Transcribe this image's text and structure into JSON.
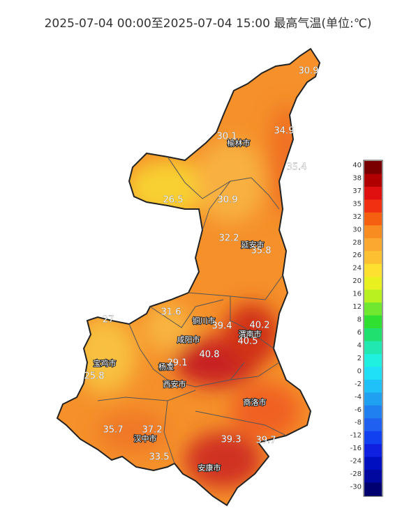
{
  "title": "2025-07-04 00:00至2025-07-04 15:00 最高气温(单位:℃)",
  "cities": [
    "榆林市",
    "延安市",
    "铜川市",
    "渭南市",
    "咸阳市",
    "宝鸡市",
    "杨凌",
    "西安市",
    "商洛市",
    "汉中市",
    "安康市"
  ],
  "readings": [
    30.9,
    30.1,
    34.9,
    35.4,
    26.5,
    30.9,
    32.2,
    35.8,
    31.6,
    27,
    39.4,
    40.2,
    40.5,
    29.1,
    40.8,
    25.8,
    35.7,
    37.2,
    33.5,
    39.3,
    39.7
  ],
  "legend": {
    "levels": [
      {
        "value": 40,
        "color": "#7a0000"
      },
      {
        "value": 38,
        "color": "#b00000"
      },
      {
        "value": 37,
        "color": "#e01010"
      },
      {
        "value": 35,
        "color": "#f03010"
      },
      {
        "value": 32,
        "color": "#f56010"
      },
      {
        "value": 30,
        "color": "#f88c20"
      },
      {
        "value": 28,
        "color": "#faa830"
      },
      {
        "value": 26,
        "color": "#fcc030"
      },
      {
        "value": 24,
        "color": "#fde030"
      },
      {
        "value": 20,
        "color": "#e8f020"
      },
      {
        "value": 16,
        "color": "#b8f020"
      },
      {
        "value": 12,
        "color": "#70e830"
      },
      {
        "value": 8,
        "color": "#30e030"
      },
      {
        "value": 6,
        "color": "#20e070"
      },
      {
        "value": 4,
        "color": "#20e8b0"
      },
      {
        "value": 2,
        "color": "#20f0e0"
      },
      {
        "value": 0,
        "color": "#20e0f8"
      },
      {
        "value": -2,
        "color": "#20c0f8"
      },
      {
        "value": -4,
        "color": "#20a0f0"
      },
      {
        "value": -6,
        "color": "#2080f0"
      },
      {
        "value": -8,
        "color": "#2060f0"
      },
      {
        "value": -12,
        "color": "#1040f0"
      },
      {
        "value": -16,
        "color": "#1020e0"
      },
      {
        "value": -24,
        "color": "#0010c0"
      },
      {
        "value": -28,
        "color": "#0008a0"
      },
      {
        "value": -30,
        "color": "#000070"
      }
    ]
  }
}
